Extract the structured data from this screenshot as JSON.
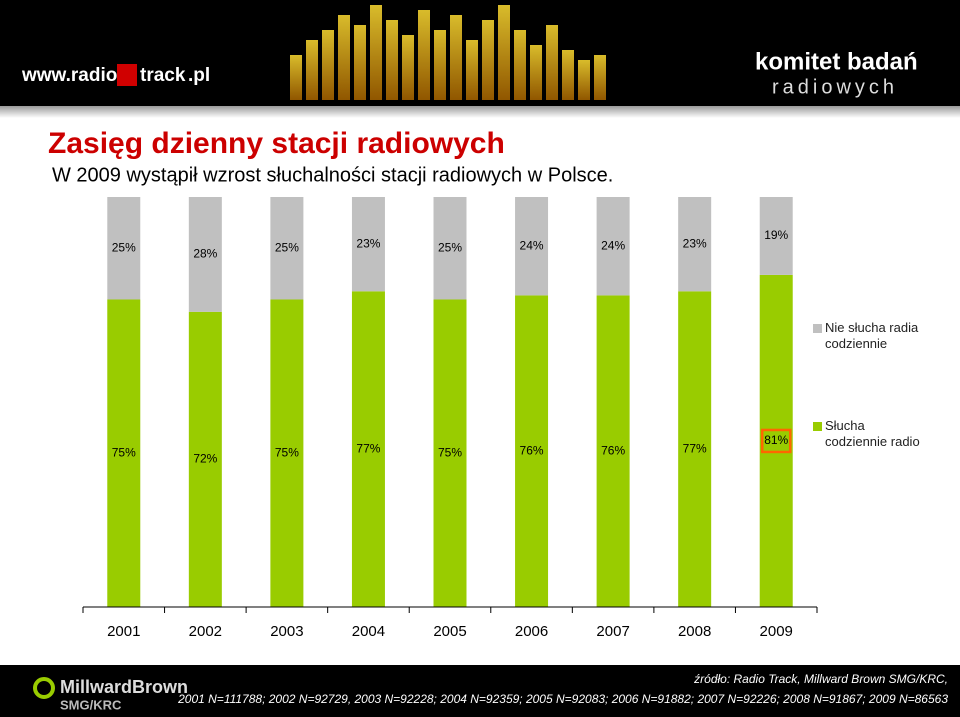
{
  "header": {
    "site_prefix": "www.radio",
    "site_brand": "track",
    "site_suffix": ".pl",
    "org_line1": "komitet badań",
    "org_line2": "radiowych"
  },
  "chart_data": {
    "type": "bar",
    "stacked": true,
    "title": "Zasięg dzienny stacji radiowych",
    "subtitle": "W 2009 wystąpił wzrost słuchalności stacji radiowych w Polsce.",
    "categories": [
      "2001",
      "2002",
      "2003",
      "2004",
      "2005",
      "2006",
      "2007",
      "2008",
      "2009"
    ],
    "series": [
      {
        "name": "Słucha codziennie radio",
        "color": "#99cc00",
        "values": [
          75,
          72,
          75,
          77,
          75,
          76,
          76,
          77,
          81
        ],
        "value_labels": [
          "75%",
          "72%",
          "75%",
          "77%",
          "75%",
          "76%",
          "76%",
          "77%",
          "81%"
        ]
      },
      {
        "name": "Nie słucha radia codziennie",
        "color": "#c0c0c0",
        "values": [
          25,
          28,
          25,
          23,
          25,
          24,
          24,
          23,
          19
        ],
        "value_labels": [
          "25%",
          "28%",
          "25%",
          "23%",
          "25%",
          "24%",
          "24%",
          "23%",
          "19%"
        ]
      }
    ],
    "ylim": [
      0,
      100
    ],
    "grid": false,
    "legend": "right",
    "highlight": {
      "series": 0,
      "index": 8,
      "color": "#ff6600"
    }
  },
  "footer": {
    "brand": "MillwardBrown",
    "brand_sub": "SMG/KRC",
    "source": "źródło: Radio Track, Millward Brown SMG/KRC,",
    "samples": "2001 N=111788; 2002 N=92729, 2003 N=92228; 2004 N=92359; 2005 N=92083; 2006 N=91882; 2007 N=92226; 2008 N=91867; 2009 N=86563"
  }
}
